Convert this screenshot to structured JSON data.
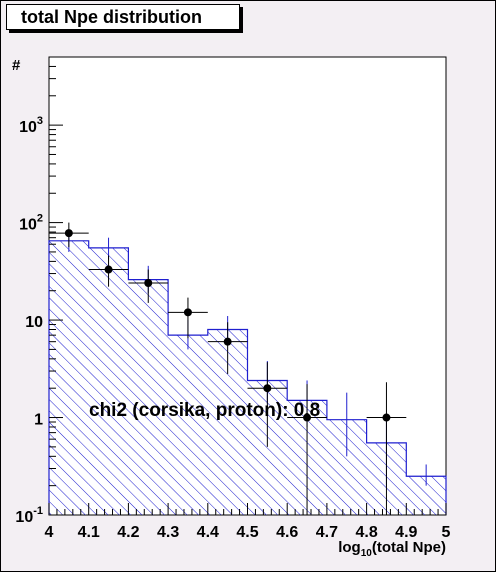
{
  "title": "total Npe distribution",
  "chart_data": {
    "type": "bar",
    "title": "total Npe distribution",
    "xlabel": "log10(total Npe)",
    "ylabel": "#",
    "xlim": [
      4,
      5
    ],
    "ylim": [
      0.1,
      5000
    ],
    "yscale": "log",
    "x_ticks": [
      "4",
      "4.1",
      "4.2",
      "4.3",
      "4.4",
      "4.5",
      "4.6",
      "4.7",
      "4.8",
      "4.9",
      "5"
    ],
    "y_ticks": [
      {
        "base": "10",
        "exp": "-1"
      },
      {
        "base": "1",
        "exp": ""
      },
      {
        "base": "10",
        "exp": ""
      },
      {
        "base": "10",
        "exp": "2"
      },
      {
        "base": "10",
        "exp": "3"
      }
    ],
    "histogram": {
      "bin_edges": [
        4.0,
        4.1,
        4.2,
        4.3,
        4.4,
        4.5,
        4.6,
        4.7,
        4.8,
        4.9,
        5.0
      ],
      "values": [
        65,
        55,
        26,
        7,
        8,
        2.4,
        1.5,
        0.95,
        0.55,
        0.25
      ],
      "errors": [
        [
          50,
          82
        ],
        [
          42,
          70
        ],
        [
          19,
          36
        ],
        [
          5,
          10
        ],
        [
          5.5,
          11
        ],
        [
          1.4,
          3.8
        ],
        [
          0.8,
          2.4
        ],
        [
          0.4,
          1.8
        ],
        [
          0.2,
          1.0
        ],
        [
          0.2,
          0.33
        ]
      ],
      "color": "#1f1fcf"
    },
    "points": {
      "x": [
        4.05,
        4.15,
        4.25,
        4.35,
        4.45,
        4.55,
        4.65,
        4.85
      ],
      "y": [
        78,
        33,
        24,
        12,
        6,
        2,
        1,
        1
      ],
      "err_low": [
        56,
        22,
        15,
        6.5,
        2.8,
        0.5,
        0.1,
        0.1
      ],
      "err_high": [
        100,
        46,
        33,
        17,
        9.5,
        3.7,
        2.2,
        2.3
      ],
      "color": "#000000"
    },
    "annotation": "chi2 (corsika, proton): 0.8"
  }
}
